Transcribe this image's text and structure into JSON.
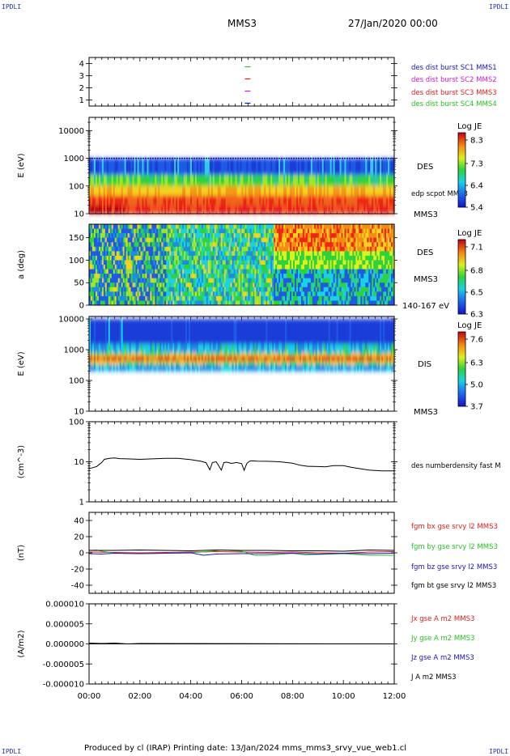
{
  "corner_label": "IPDLI",
  "header": {
    "spacecraft": "MMS3",
    "datetime": "27/Jan/2020 00:00"
  },
  "footer": {
    "text": "Produced by cl (IRAP)   Printing date: 13/Jan/2024   mms_mms3_srvy_vue_web1.cl"
  },
  "colors": {
    "red": "#e41a1c",
    "green": "#22c322",
    "blue": "#1414c8",
    "magenta": "#d01cd0",
    "black": "#000000"
  },
  "chart_data": [
    {
      "type": "scatter",
      "id": "burst",
      "ylim": [
        0.5,
        4.5
      ],
      "yticks": [
        "1",
        "2",
        "3",
        "4"
      ],
      "ytick_values": [
        1,
        2,
        3,
        4
      ],
      "series": [
        {
          "name": "des dist burst SC1 MMS1",
          "color": "#1414c8",
          "x": [
            6.22
          ],
          "y": [
            1
          ]
        },
        {
          "name": "des dist burst SC2 MMS2",
          "color": "#d01cd0",
          "x": [
            6.22
          ],
          "y": [
            2
          ]
        },
        {
          "name": "des dist burst SC3 MMS3",
          "color": "#e41a1c",
          "x": [
            6.22
          ],
          "y": [
            3
          ]
        },
        {
          "name": "des dist burst SC4 MMS4",
          "color": "#22c322",
          "x": [
            6.22
          ],
          "y": [
            4
          ]
        }
      ]
    },
    {
      "type": "heatmap",
      "id": "des_energy",
      "ylabel": "E (eV)",
      "yscale": "log",
      "ylim": [
        10,
        30000
      ],
      "yticks": [
        "10",
        "100",
        "1000",
        "10000"
      ],
      "ytick_values": [
        10,
        100,
        1000,
        10000
      ],
      "side_labels": [
        "DES",
        "edp scpot MMS3",
        "MMS3"
      ],
      "colorbar": {
        "title": "Log JE",
        "ticks": [
          "8.3",
          "7.3",
          "6.4",
          "5.4"
        ]
      }
    },
    {
      "type": "heatmap",
      "id": "des_pitch",
      "ylabel": "a (deg)",
      "ylim": [
        0,
        180
      ],
      "yticks": [
        "0",
        "50",
        "100",
        "150"
      ],
      "ytick_values": [
        0,
        50,
        100,
        150
      ],
      "side_labels": [
        "DES",
        "MMS3",
        "140-167 eV"
      ],
      "colorbar": {
        "title": "Log JE",
        "ticks": [
          "7.1",
          "6.8",
          "6.5",
          "6.3"
        ]
      }
    },
    {
      "type": "heatmap",
      "id": "dis_energy",
      "ylabel": "E (eV)",
      "yscale": "log",
      "ylim": [
        10,
        12000
      ],
      "yticks": [
        "10",
        "100",
        "1000",
        "10000"
      ],
      "ytick_values": [
        10,
        100,
        1000,
        10000
      ],
      "side_labels": [
        "DIS",
        "MMS3"
      ],
      "colorbar": {
        "title": "Log JE",
        "ticks": [
          "7.6",
          "6.3",
          "5.0",
          "3.7"
        ]
      }
    },
    {
      "type": "line",
      "id": "density",
      "ylabel": "(cm^-3)",
      "yscale": "log",
      "ylim": [
        1,
        100
      ],
      "yticks": [
        "1",
        "10",
        "100"
      ],
      "ytick_values": [
        1,
        10,
        100
      ],
      "series": [
        {
          "name": "des numberdensity fast M",
          "color": "#000000",
          "x": [
            0,
            0.1,
            0.2,
            0.3,
            0.4,
            0.5,
            0.6,
            0.8,
            1.0,
            1.2,
            1.5,
            2.0,
            2.5,
            3.0,
            3.5,
            4.0,
            4.4,
            4.6,
            4.75,
            4.85,
            5.0,
            5.2,
            5.3,
            5.4,
            5.6,
            5.8,
            6.0,
            6.1,
            6.2,
            6.3,
            6.4,
            6.6,
            7.0,
            7.5,
            8.0,
            8.3,
            8.6,
            9.0,
            9.3,
            9.6,
            10.0,
            10.3,
            10.6,
            11.0,
            11.5,
            12.0
          ],
          "y": [
            6.8,
            7.0,
            7.3,
            7.6,
            8.6,
            9.6,
            11.5,
            12.2,
            12.5,
            12.0,
            11.8,
            11.5,
            11.8,
            12.2,
            12.2,
            11.3,
            10.3,
            9.5,
            6.3,
            9.6,
            10.0,
            6.2,
            9.5,
            9.8,
            9.1,
            9.6,
            9.0,
            6.1,
            9.0,
            10.3,
            10.6,
            10.4,
            10.3,
            10.0,
            9.2,
            8.2,
            7.7,
            7.6,
            7.5,
            8.0,
            8.0,
            7.3,
            6.8,
            6.2,
            5.9,
            5.9
          ]
        }
      ]
    },
    {
      "type": "line",
      "id": "magnetic",
      "ylabel": "(nT)",
      "ylim": [
        -50,
        50
      ],
      "yticks": [
        "-40",
        "-20",
        "0",
        "20",
        "40"
      ],
      "ytick_values": [
        -40,
        -20,
        0,
        20,
        40
      ],
      "series": [
        {
          "name": "fgm bx gse srvy l2 MMS3",
          "color": "#e41a1c",
          "x": [
            0,
            1,
            2,
            3,
            4,
            5,
            6,
            7,
            8,
            9,
            10,
            11,
            12
          ],
          "y": [
            1,
            0.5,
            0,
            0.5,
            1,
            1.5,
            1,
            0.5,
            1,
            0,
            -0.5,
            1,
            1.5
          ]
        },
        {
          "name": "fgm by gse srvy l2 MMS3",
          "color": "#22c322",
          "x": [
            0,
            0.3,
            0.5,
            1,
            2,
            3,
            4,
            4.8,
            5.2,
            6,
            6.5,
            7,
            8,
            8.5,
            9,
            10,
            11,
            12
          ],
          "y": [
            3,
            3.5,
            2,
            -0.5,
            -1,
            -0.5,
            0,
            2,
            3.5,
            2,
            -3,
            -3,
            -0.5,
            -2.5,
            -2,
            -1,
            -3,
            -3
          ]
        },
        {
          "name": "fgm bz gse srvy l2 MMS3",
          "color": "#1414c8",
          "x": [
            0,
            0.5,
            1,
            2,
            3,
            4,
            4.5,
            5,
            6,
            7,
            8,
            9,
            10,
            11,
            12
          ],
          "y": [
            -1,
            -1.5,
            -0.5,
            -1,
            -0.5,
            0,
            -3,
            -1.5,
            -1,
            -1,
            -0.5,
            -1.5,
            -0.5,
            -1,
            -0.5
          ]
        },
        {
          "name": "fgm bt gse srvy l2 MMS3",
          "color": "#000000",
          "x": [
            0,
            1,
            2,
            3,
            4,
            5,
            6,
            7,
            8,
            9,
            10,
            11,
            12
          ],
          "y": [
            3,
            3,
            3.5,
            3,
            2.5,
            3.5,
            3,
            3,
            2.5,
            2.5,
            2,
            3.5,
            3
          ]
        }
      ]
    },
    {
      "type": "line",
      "id": "current",
      "ylabel": "(A/m2)",
      "ylim": [
        -1e-05,
        1e-05
      ],
      "yticks": [
        "-0.000010",
        "-0.000005",
        "0.000000",
        "0.000005",
        "0.000010"
      ],
      "ytick_values": [
        -1e-05,
        -5e-06,
        0,
        5e-06,
        1e-05
      ],
      "series": [
        {
          "name": "Jx gse A m2 MMS3",
          "color": "#e41a1c",
          "x": [
            0,
            12
          ],
          "y": [
            0,
            0
          ]
        },
        {
          "name": "Jy gse A m2 MMS3",
          "color": "#22c322",
          "x": [
            0,
            12
          ],
          "y": [
            0,
            0
          ]
        },
        {
          "name": "Jz gse A m2 MMS3",
          "color": "#1414c8",
          "x": [
            0,
            12
          ],
          "y": [
            0,
            0
          ]
        },
        {
          "name": "J A m2 MMS3",
          "color": "#000000",
          "x": [
            0,
            0.5,
            1,
            1.5,
            2,
            12
          ],
          "y": [
            2e-07,
            1e-07,
            2e-07,
            0,
            1e-07,
            0
          ]
        }
      ]
    }
  ],
  "time_axis": {
    "xlim": [
      0,
      12
    ],
    "ticks": [
      "00:00",
      "02:00",
      "04:00",
      "06:00",
      "08:00",
      "10:00",
      "12:00"
    ],
    "tick_values": [
      0,
      2,
      4,
      6,
      8,
      10,
      12
    ]
  }
}
